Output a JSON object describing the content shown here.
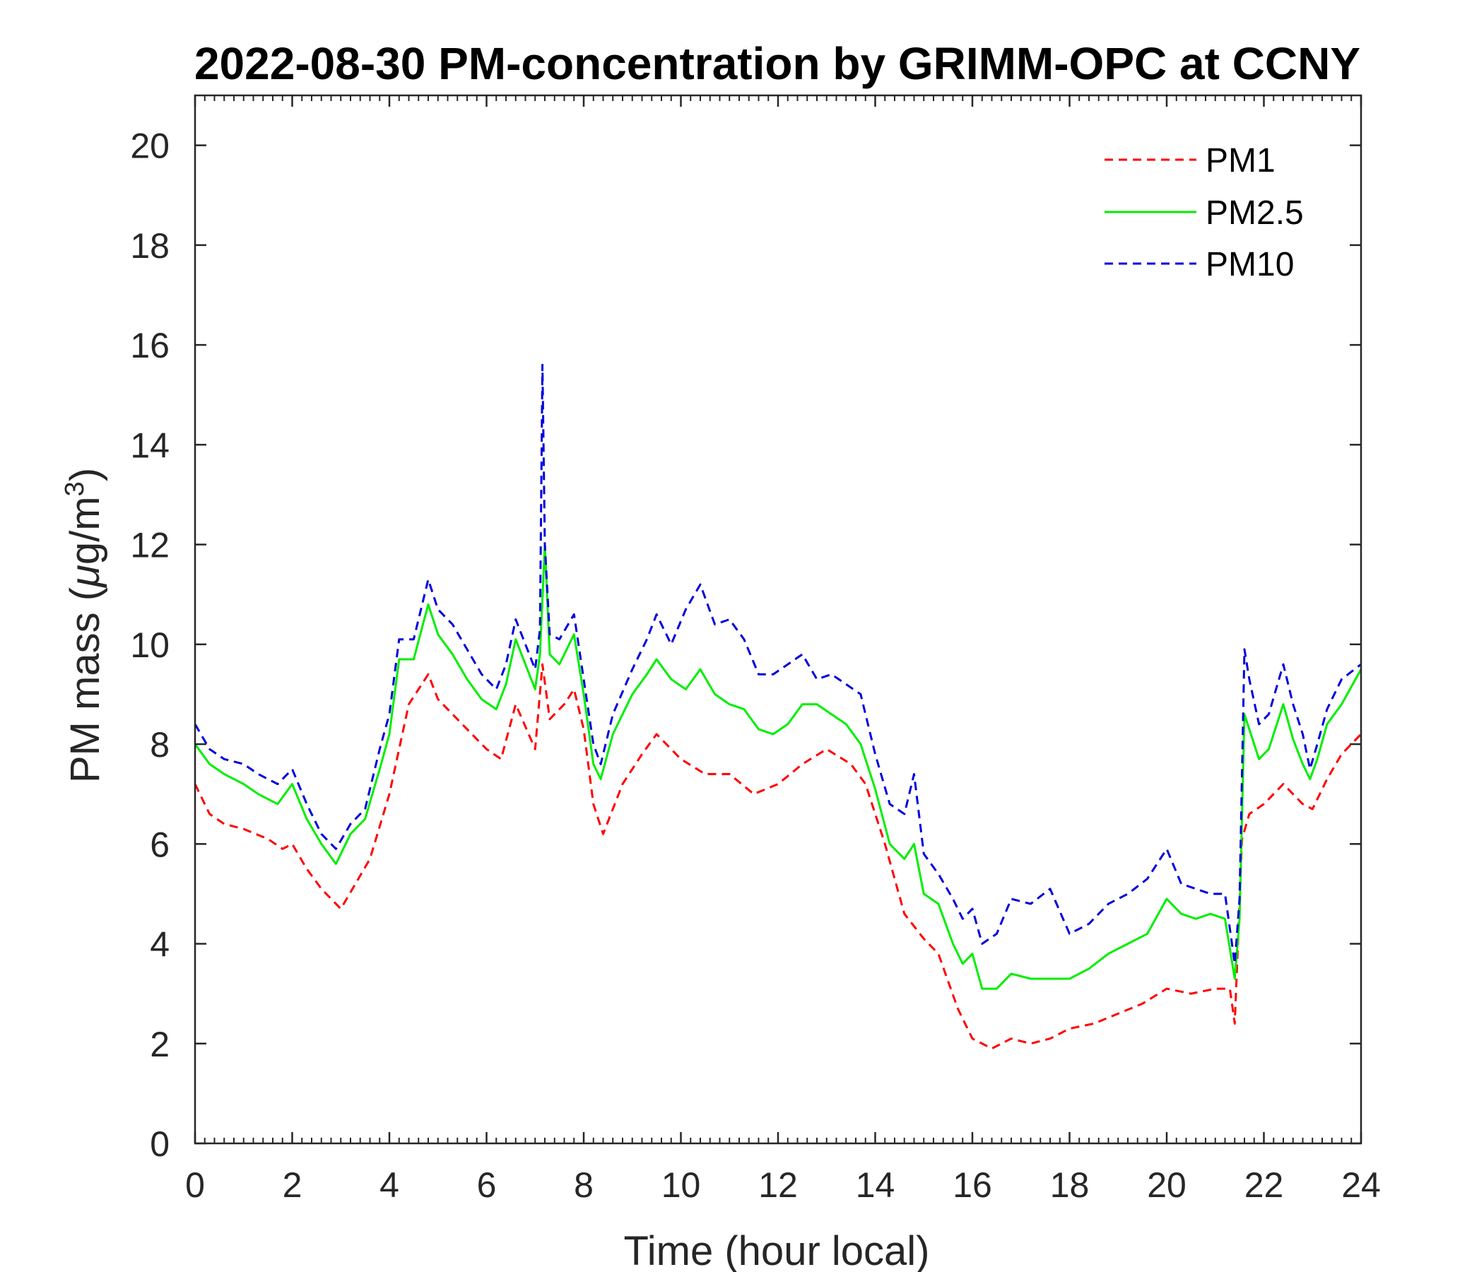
{
  "chart_data": {
    "type": "line",
    "title": "2022-08-30 PM-concentration by GRIMM-OPC at CCNY",
    "xlabel": "Time (hour local)",
    "ylabel": "PM mass (μg/m³)",
    "ylabel_parts": {
      "main": "PM mass (",
      "mu": "μ",
      "unit": "g/m",
      "exp": "3",
      "close": ")"
    },
    "xlim": [
      0,
      24
    ],
    "ylim": [
      0,
      21
    ],
    "x_ticks": [
      0,
      2,
      4,
      6,
      8,
      10,
      12,
      14,
      16,
      18,
      20,
      22,
      24
    ],
    "y_ticks": [
      0,
      2,
      4,
      6,
      8,
      10,
      12,
      14,
      16,
      18,
      20
    ],
    "grid": false,
    "legend_position": "top-right",
    "series": [
      {
        "name": "PM1",
        "color": "#ff0000",
        "line_style": "dashed",
        "x": [
          0,
          0.3,
          0.6,
          1.0,
          1.5,
          1.8,
          2.0,
          2.3,
          2.6,
          3.0,
          3.3,
          3.6,
          4.0,
          4.4,
          4.8,
          5.0,
          5.3,
          5.6,
          6.0,
          6.3,
          6.6,
          7.0,
          7.15,
          7.3,
          7.6,
          7.8,
          8.0,
          8.2,
          8.4,
          8.8,
          9.2,
          9.5,
          10.0,
          10.5,
          11.0,
          11.5,
          12.0,
          12.5,
          13.0,
          13.5,
          13.8,
          14.2,
          14.6,
          15.0,
          15.3,
          15.7,
          16.0,
          16.4,
          16.8,
          17.2,
          17.6,
          18.0,
          18.5,
          19.0,
          19.5,
          20.0,
          20.5,
          21.0,
          21.3,
          21.4,
          21.55,
          21.7,
          22.0,
          22.4,
          22.8,
          23.0,
          23.3,
          23.6,
          24.0
        ],
        "values": [
          7.2,
          6.6,
          6.4,
          6.3,
          6.1,
          5.9,
          6.0,
          5.5,
          5.1,
          4.7,
          5.2,
          5.7,
          7.0,
          8.8,
          9.4,
          8.9,
          8.6,
          8.3,
          7.9,
          7.7,
          8.8,
          7.9,
          9.6,
          8.5,
          8.8,
          9.1,
          8.3,
          6.8,
          6.2,
          7.2,
          7.8,
          8.2,
          7.7,
          7.4,
          7.4,
          7.0,
          7.2,
          7.6,
          7.9,
          7.6,
          7.2,
          6.0,
          4.6,
          4.1,
          3.8,
          2.7,
          2.1,
          1.9,
          2.1,
          2.0,
          2.1,
          2.3,
          2.4,
          2.6,
          2.8,
          3.1,
          3.0,
          3.1,
          3.1,
          2.4,
          6.1,
          6.6,
          6.8,
          7.2,
          6.8,
          6.7,
          7.3,
          7.8,
          8.2
        ]
      },
      {
        "name": "PM2.5",
        "color": "#00ee00",
        "line_style": "solid",
        "x": [
          0,
          0.3,
          0.6,
          1.0,
          1.3,
          1.7,
          2.0,
          2.3,
          2.6,
          2.9,
          3.2,
          3.5,
          3.8,
          4.0,
          4.2,
          4.5,
          4.8,
          5.0,
          5.3,
          5.6,
          5.9,
          6.2,
          6.4,
          6.6,
          6.8,
          7.0,
          7.1,
          7.2,
          7.3,
          7.5,
          7.8,
          8.0,
          8.2,
          8.35,
          8.6,
          9.0,
          9.3,
          9.5,
          9.8,
          10.1,
          10.4,
          10.7,
          11.0,
          11.3,
          11.6,
          11.9,
          12.2,
          12.5,
          12.8,
          13.1,
          13.4,
          13.7,
          14.0,
          14.3,
          14.6,
          14.8,
          15.0,
          15.3,
          15.6,
          15.8,
          16.0,
          16.2,
          16.5,
          16.8,
          17.2,
          17.6,
          18.0,
          18.4,
          18.8,
          19.2,
          19.6,
          20.0,
          20.3,
          20.6,
          20.9,
          21.2,
          21.4,
          21.5,
          21.6,
          21.7,
          21.9,
          22.1,
          22.4,
          22.6,
          22.8,
          22.95,
          23.1,
          23.3,
          23.6,
          24.0
        ],
        "values": [
          8.0,
          7.6,
          7.4,
          7.2,
          7.0,
          6.8,
          7.2,
          6.5,
          6.0,
          5.6,
          6.2,
          6.5,
          7.5,
          8.2,
          9.7,
          9.7,
          10.8,
          10.2,
          9.8,
          9.3,
          8.9,
          8.7,
          9.2,
          10.1,
          9.6,
          9.1,
          9.8,
          12.0,
          9.8,
          9.6,
          10.2,
          9.0,
          7.6,
          7.3,
          8.2,
          9.0,
          9.4,
          9.7,
          9.3,
          9.1,
          9.5,
          9.0,
          8.8,
          8.7,
          8.3,
          8.2,
          8.4,
          8.8,
          8.8,
          8.6,
          8.4,
          8.0,
          7.1,
          6.0,
          5.7,
          6.0,
          5.0,
          4.8,
          4.0,
          3.6,
          3.8,
          3.1,
          3.1,
          3.4,
          3.3,
          3.3,
          3.3,
          3.5,
          3.8,
          4.0,
          4.2,
          4.9,
          4.6,
          4.5,
          4.6,
          4.5,
          3.3,
          4.5,
          8.6,
          8.3,
          7.7,
          7.9,
          8.8,
          8.1,
          7.6,
          7.3,
          7.7,
          8.4,
          8.8,
          9.5
        ]
      },
      {
        "name": "PM10",
        "color": "#0000dd",
        "line_style": "dashed",
        "x": [
          0,
          0.3,
          0.6,
          1.0,
          1.3,
          1.7,
          2.0,
          2.3,
          2.6,
          2.9,
          3.2,
          3.5,
          3.8,
          4.0,
          4.2,
          4.5,
          4.8,
          5.0,
          5.3,
          5.6,
          5.9,
          6.2,
          6.4,
          6.6,
          6.8,
          7.0,
          7.1,
          7.15,
          7.2,
          7.3,
          7.5,
          7.8,
          8.0,
          8.2,
          8.35,
          8.6,
          9.0,
          9.3,
          9.5,
          9.8,
          10.1,
          10.4,
          10.7,
          11.0,
          11.3,
          11.6,
          11.9,
          12.2,
          12.5,
          12.8,
          13.1,
          13.4,
          13.7,
          14.0,
          14.3,
          14.6,
          14.8,
          15.0,
          15.3,
          15.6,
          15.8,
          16.0,
          16.2,
          16.5,
          16.8,
          17.2,
          17.6,
          18.0,
          18.4,
          18.8,
          19.2,
          19.6,
          20.0,
          20.3,
          20.6,
          20.9,
          21.2,
          21.4,
          21.5,
          21.6,
          21.7,
          21.9,
          22.1,
          22.4,
          22.6,
          22.8,
          22.95,
          23.1,
          23.3,
          23.6,
          24.0
        ],
        "values": [
          8.4,
          7.9,
          7.7,
          7.6,
          7.4,
          7.2,
          7.5,
          6.8,
          6.2,
          5.9,
          6.4,
          6.7,
          7.9,
          8.6,
          10.1,
          10.1,
          11.3,
          10.7,
          10.4,
          9.9,
          9.4,
          9.1,
          9.6,
          10.5,
          10.0,
          9.5,
          10.3,
          15.6,
          12.0,
          10.2,
          10.1,
          10.6,
          9.3,
          8.0,
          7.6,
          8.6,
          9.5,
          10.1,
          10.6,
          10.0,
          10.7,
          11.2,
          10.4,
          10.5,
          10.1,
          9.4,
          9.4,
          9.6,
          9.8,
          9.3,
          9.4,
          9.2,
          9.0,
          7.8,
          6.8,
          6.6,
          7.4,
          5.8,
          5.4,
          4.9,
          4.5,
          4.7,
          4.0,
          4.2,
          4.9,
          4.8,
          5.1,
          4.2,
          4.4,
          4.8,
          5.0,
          5.3,
          5.9,
          5.2,
          5.1,
          5.0,
          5.0,
          3.6,
          4.9,
          9.9,
          9.3,
          8.4,
          8.6,
          9.6,
          8.8,
          8.2,
          7.5,
          8.0,
          8.7,
          9.3,
          9.6
        ]
      }
    ]
  }
}
